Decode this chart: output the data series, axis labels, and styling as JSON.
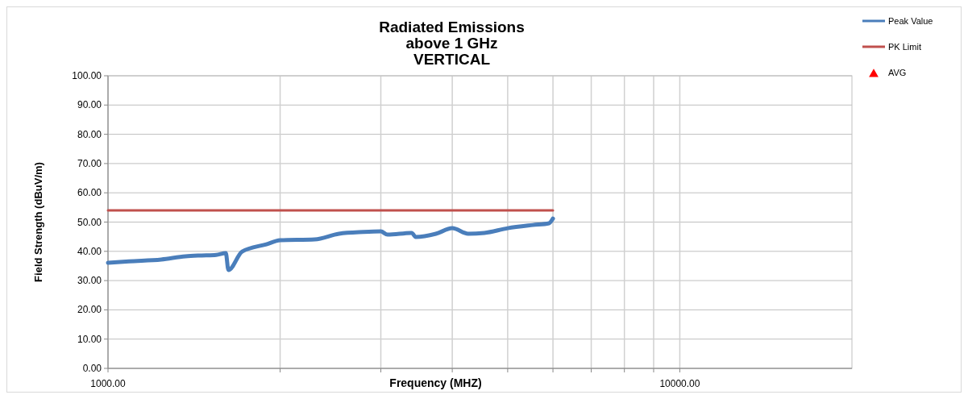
{
  "chart_data": {
    "type": "line",
    "title": "Radiated Emissions\nabove 1 GHz\nVERTICAL",
    "xlabel": "Frequency (MHZ)",
    "ylabel": "Field Strength (dBuV/m)",
    "log": "x",
    "xlim": [
      1000,
      20000
    ],
    "xticks": [
      {
        "value": 1000,
        "label": "1000.00"
      },
      {
        "value": 2000,
        "label": null
      },
      {
        "value": 3000,
        "label": null
      },
      {
        "value": 4000,
        "label": null
      },
      {
        "value": 5000,
        "label": null
      },
      {
        "value": 6000,
        "label": null
      },
      {
        "value": 7000,
        "label": null
      },
      {
        "value": 8000,
        "label": null
      },
      {
        "value": 9000,
        "label": null
      },
      {
        "value": 10000,
        "label": "10000.00"
      }
    ],
    "ylim": [
      0,
      100
    ],
    "yticks": [
      {
        "value": 0,
        "label": "0.00"
      },
      {
        "value": 10,
        "label": "10.00"
      },
      {
        "value": 20,
        "label": "20.00"
      },
      {
        "value": 30,
        "label": "30.00"
      },
      {
        "value": 40,
        "label": "40.00"
      },
      {
        "value": 50,
        "label": "50.00"
      },
      {
        "value": 60,
        "label": "60.00"
      },
      {
        "value": 70,
        "label": "70.00"
      },
      {
        "value": 80,
        "label": "80.00"
      },
      {
        "value": 90,
        "label": "90.00"
      },
      {
        "value": 100,
        "label": "100.00"
      }
    ],
    "grid": true,
    "legend": "top right",
    "series": [
      {
        "name": "Peak Value",
        "color": "#4a7ebb",
        "x": [
          1000,
          1088,
          1239,
          1366,
          1458,
          1546,
          1607,
          1624,
          1716,
          1892,
          2000,
          2299,
          2535,
          2795,
          3000,
          3082,
          3397,
          3452,
          3745,
          4000,
          4265,
          4552,
          5000,
          5534,
          5905,
          6000
        ],
        "values": [
          36.1,
          36.6,
          37.2,
          38.3,
          38.6,
          38.8,
          39.4,
          33.6,
          39.9,
          42.4,
          43.8,
          44.1,
          46.0,
          46.6,
          46.8,
          45.7,
          46.3,
          44.9,
          46.0,
          47.9,
          46.0,
          46.3,
          47.9,
          49.0,
          49.6,
          51.2
        ]
      },
      {
        "name": "PK Limit",
        "color": "#c0504d",
        "x": [
          1000,
          6000
        ],
        "values": [
          54,
          54
        ]
      },
      {
        "name": "AVG",
        "type": "scatter",
        "marker": "triangle",
        "color": "#ff0000"
      }
    ]
  }
}
